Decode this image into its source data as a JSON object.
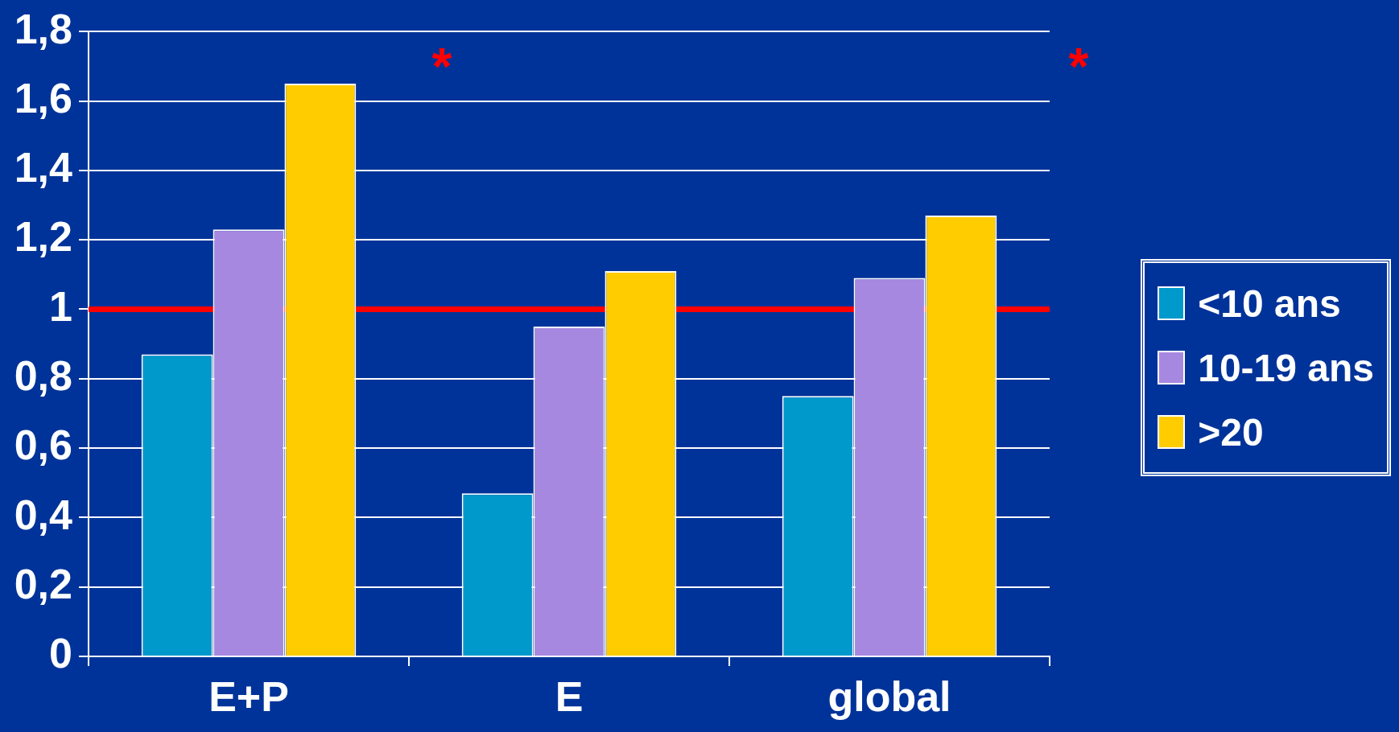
{
  "chart_data": {
    "type": "bar",
    "categories": [
      "E+P",
      "E",
      "global"
    ],
    "series": [
      {
        "name": "<10 ans",
        "color": "#0099cc",
        "values": [
          0.87,
          0.47,
          0.75
        ]
      },
      {
        "name": "10-19 ans",
        "color": "#a788e0",
        "values": [
          1.23,
          0.95,
          1.09
        ]
      },
      {
        "name": ">20",
        "color": "#ffcc00",
        "values": [
          1.65,
          1.11,
          1.27
        ]
      }
    ],
    "ylim": [
      0,
      1.8
    ],
    "yticks": [
      0,
      {
        "value": 0.2,
        "label": "0,2"
      },
      {
        "value": 0.4,
        "label": "0,4"
      },
      {
        "value": 0.6,
        "label": "0,6"
      },
      {
        "value": 0.8,
        "label": "0,8"
      },
      1,
      {
        "value": 1.2,
        "label": "1,2"
      },
      {
        "value": 1.4,
        "label": "1,4"
      },
      {
        "value": 1.6,
        "label": "1,6"
      },
      {
        "value": 1.8,
        "label": "1,8"
      }
    ],
    "grid": "y",
    "legend": "right",
    "ref_lines": [
      {
        "axis": "y",
        "value": 1,
        "color": "#ff0000"
      }
    ],
    "annotations": [
      "*",
      "*"
    ]
  }
}
